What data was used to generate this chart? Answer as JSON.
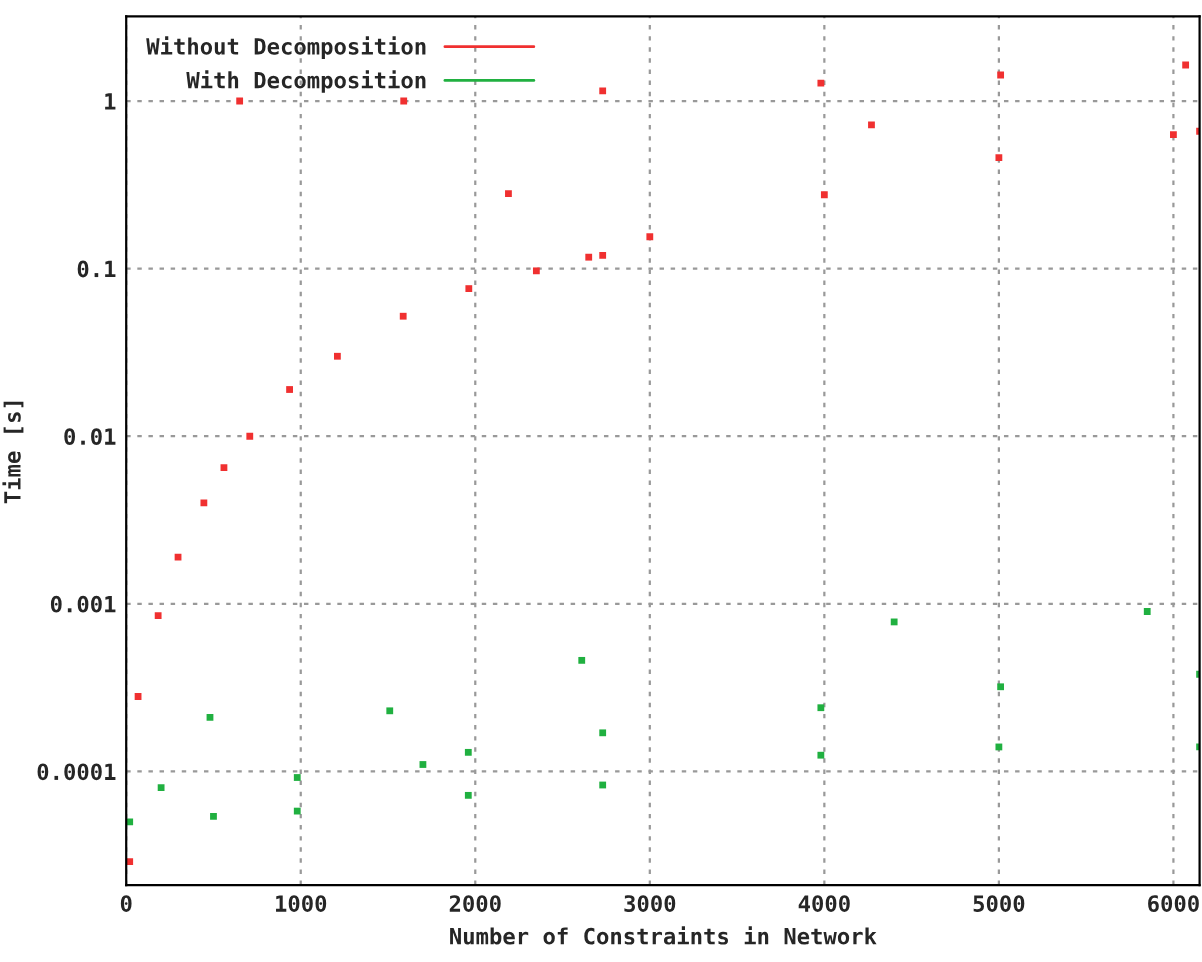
{
  "chart_data": {
    "type": "scatter",
    "xlabel": "Number of Constraints in Network",
    "ylabel": "Time [s]",
    "xlim": [
      0,
      6150
    ],
    "xticks": [
      0,
      1000,
      2000,
      3000,
      4000,
      5000,
      6000
    ],
    "ylim": [
      2.1e-05,
      3.2
    ],
    "yticks": [
      0.0001,
      0.001,
      0.01,
      0.1,
      1
    ],
    "log": "y",
    "grid": true,
    "legend": "top left",
    "series": [
      {
        "name": "Without Decomposition",
        "color": "#f03030",
        "x": [
          20,
          68,
          183,
          297,
          445,
          560,
          708,
          936,
          1210,
          1587,
          1963,
          2350,
          2650,
          2730,
          3000,
          4000,
          5000,
          6000,
          6150,
          650,
          1590,
          2730,
          3980,
          5010,
          6070,
          2190,
          4270
        ],
        "values": [
          2.9e-05,
          0.00028,
          0.00085,
          0.0019,
          0.004,
          0.0065,
          0.01,
          0.019,
          0.03,
          0.052,
          0.076,
          0.097,
          0.117,
          0.12,
          0.155,
          0.276,
          0.46,
          0.63,
          0.66,
          1.0,
          1.0,
          1.15,
          1.28,
          1.43,
          1.64,
          0.28,
          0.72
        ]
      },
      {
        "name": "With Decomposition",
        "color": "#20b040",
        "x": [
          20,
          980,
          1960,
          2730,
          3980,
          5010,
          6150,
          500,
          980,
          1960,
          2730,
          200,
          1700,
          3980,
          5000,
          6150,
          480,
          1510,
          2610,
          4400,
          5850
        ],
        "values": [
          5e-05,
          9.2e-05,
          0.00013,
          0.00017,
          0.00024,
          0.00032,
          0.00038,
          5.4e-05,
          5.8e-05,
          7.2e-05,
          8.3e-05,
          8e-05,
          0.00011,
          0.000125,
          0.00014,
          0.00014,
          0.00021,
          0.00023,
          0.00046,
          0.00078,
          0.0009
        ]
      }
    ]
  }
}
